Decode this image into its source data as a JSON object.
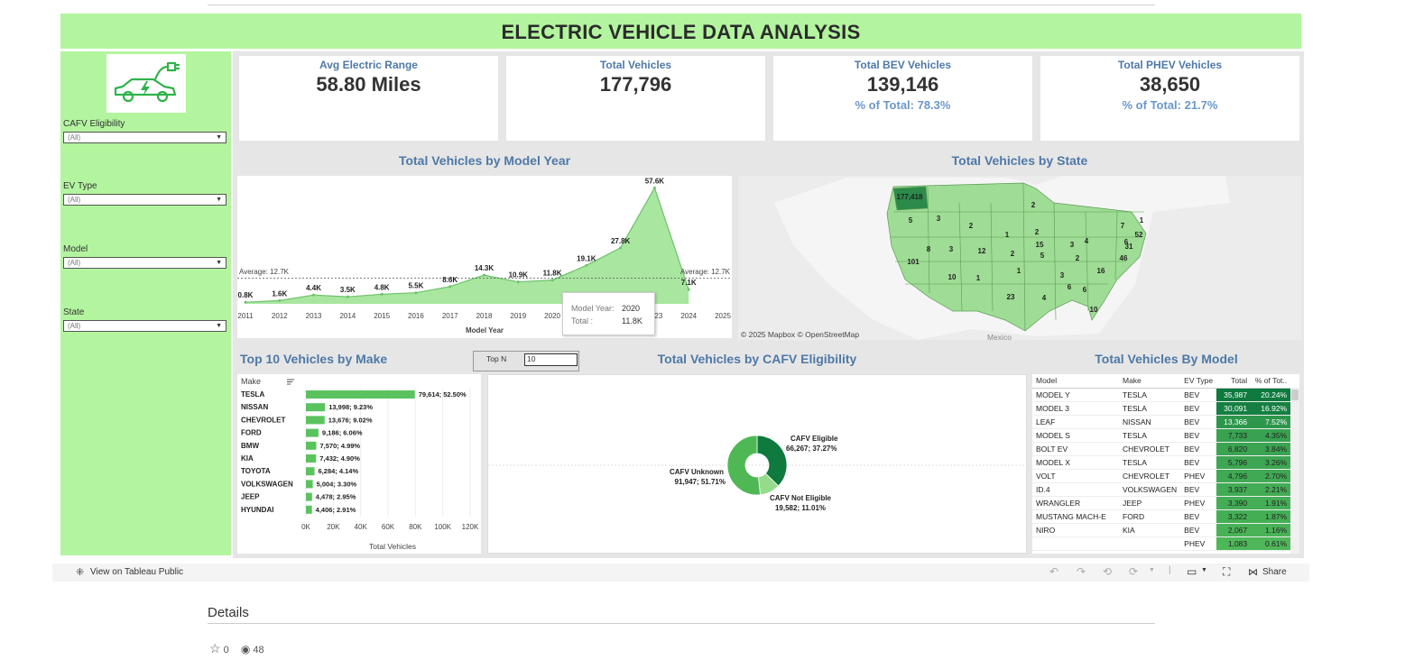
{
  "dashboard": {
    "title": "ELECTRIC VEHICLE DATA ANALYSIS"
  },
  "filters": [
    {
      "label": "CAFV Eligibility",
      "value": "(All)"
    },
    {
      "label": "EV Type",
      "value": "(All)"
    },
    {
      "label": "Model",
      "value": "(All)"
    },
    {
      "label": "State",
      "value": "(All)"
    }
  ],
  "kpis": [
    {
      "title": "Avg Electric Range",
      "value": "58.80 Miles",
      "pct": ""
    },
    {
      "title": "Total Vehicles",
      "value": "177,796",
      "pct": ""
    },
    {
      "title": "Total BEV Vehicles",
      "value": "139,146",
      "pct": "% of Total: 78.3%"
    },
    {
      "title": "Total PHEV Vehicles",
      "value": "38,650",
      "pct": "% of Total: 21.7%"
    }
  ],
  "model_year": {
    "title": "Total Vehicles by Model Year",
    "xlabel": "Model Year",
    "avg_label": "Average: 12.7K",
    "tooltip": {
      "k1": "Model Year:",
      "v1": "2020",
      "k2": "Total :",
      "v2": "11.8K"
    }
  },
  "state_map": {
    "title": "Total Vehicles by State",
    "credit": "© 2025 Mapbox  © OpenStreetMap",
    "country_label": "Mexico",
    "labels": [
      "177,418",
      "5",
      "3",
      "2",
      "2",
      "1",
      "2",
      "7",
      "1",
      "101",
      "8",
      "3",
      "12",
      "2",
      "15",
      "3",
      "4",
      "52",
      "31",
      "6",
      "46",
      "10",
      "1",
      "5",
      "2",
      "3",
      "16",
      "1",
      "23",
      "4",
      "6",
      "6",
      "10"
    ]
  },
  "make_chart": {
    "title": "Top 10 Vehicles by Make",
    "col_header": "Make",
    "xlabel": "Total Vehicles",
    "topn_label": "Top N",
    "topn_value": "10"
  },
  "cafv_chart": {
    "title": "Total Vehicles by CAFV Eligibility",
    "eligible_name": "CAFV Eligible",
    "eligible_val": "66,267; 37.27%",
    "unknown_name": "CAFV Unknown",
    "unknown_val": "91,947; 51.71%",
    "noteligible_name": "CAFV Not Eligible",
    "noteligible_val": "19,582; 11.01%"
  },
  "model_table": {
    "title": "Total Vehicles By Model",
    "headers": [
      "Model",
      "Make",
      "EV Type",
      "Total",
      "% of Tot.."
    ],
    "rows": [
      [
        "MODEL Y",
        "TESLA",
        "BEV",
        "35,987",
        "20.24%"
      ],
      [
        "MODEL 3",
        "TESLA",
        "BEV",
        "30,091",
        "16.92%"
      ],
      [
        "LEAF",
        "NISSAN",
        "BEV",
        "13,366",
        "7.52%"
      ],
      [
        "MODEL S",
        "TESLA",
        "BEV",
        "7,733",
        "4.35%"
      ],
      [
        "BOLT EV",
        "CHEVROLET",
        "BEV",
        "6,820",
        "3.84%"
      ],
      [
        "MODEL X",
        "TESLA",
        "BEV",
        "5,796",
        "3.26%"
      ],
      [
        "VOLT",
        "CHEVROLET",
        "PHEV",
        "4,796",
        "2.70%"
      ],
      [
        "ID.4",
        "VOLKSWAGEN",
        "BEV",
        "3,937",
        "2.21%"
      ],
      [
        "WRANGLER",
        "JEEP",
        "PHEV",
        "3,390",
        "1.91%"
      ],
      [
        "MUSTANG MACH-E",
        "FORD",
        "BEV",
        "3,322",
        "1.87%"
      ],
      [
        "NIRO",
        "KIA",
        "BEV",
        "2,067",
        "1.16%"
      ],
      [
        "",
        "",
        "PHEV",
        "1,083",
        "0.61%"
      ]
    ]
  },
  "toolbar": {
    "view_label": "View on Tableau Public",
    "share_label": "Share"
  },
  "details": {
    "heading": "Details",
    "stars": "0",
    "views": "48"
  },
  "chart_data": [
    {
      "type": "area",
      "title": "Total Vehicles by Model Year",
      "xlabel": "Model Year",
      "ylabel": "",
      "x": [
        2011,
        2012,
        2013,
        2014,
        2015,
        2016,
        2017,
        2018,
        2019,
        2020,
        2021,
        2022,
        2023,
        2024,
        2025
      ],
      "values": [
        0.8,
        1.6,
        4.4,
        3.5,
        4.8,
        5.5,
        8.6,
        14.3,
        10.9,
        11.8,
        19.1,
        27.8,
        57.6,
        7.1,
        null
      ],
      "value_labels": [
        "0.8K",
        "1.6K",
        "4.4K",
        "3.5K",
        "4.8K",
        "5.5K",
        "8.6K",
        "14.3K",
        "10.9K",
        "11.8K",
        "19.1K",
        "27.8K",
        "57.6K",
        "7.1K",
        ""
      ],
      "reference_line": 12.7,
      "tick_labels": [
        "2011",
        "2012",
        "2013",
        "2014",
        "2015",
        "2016",
        "2017",
        "2018",
        "2019",
        "2020",
        "2021",
        "2023",
        "2024",
        "2025"
      ]
    },
    {
      "type": "bar",
      "title": "Top 10 Vehicles by Make",
      "xlabel": "Total Vehicles",
      "categories": [
        "TESLA",
        "NISSAN",
        "CHEVROLET",
        "FORD",
        "BMW",
        "KIA",
        "TOYOTA",
        "VOLKSWAGEN",
        "JEEP",
        "HYUNDAI"
      ],
      "values": [
        79614,
        13998,
        13676,
        9186,
        7570,
        7432,
        6284,
        5004,
        4478,
        4406
      ],
      "value_labels": [
        "79,614; 52.50%",
        "13,998; 9.23%",
        "13,676; 9.02%",
        "9,186; 6.06%",
        "7,570; 4.99%",
        "7,432; 4.90%",
        "6,284; 4.14%",
        "5,004; 3.30%",
        "4,478; 2.95%",
        "4,406; 2.91%"
      ],
      "xlim": [
        0,
        120000
      ],
      "tick_labels": [
        "0K",
        "20K",
        "40K",
        "60K",
        "80K",
        "100K",
        "120K"
      ],
      "color": "#5ac35e"
    },
    {
      "type": "pie",
      "title": "Total Vehicles by CAFV Eligibility",
      "categories": [
        "CAFV Eligible",
        "CAFV Not Eligible",
        "CAFV Unknown"
      ],
      "values": [
        66267,
        19582,
        91947
      ],
      "colors": [
        "#0e7a3e",
        "#94dc8c",
        "#4fb855"
      ]
    }
  ]
}
